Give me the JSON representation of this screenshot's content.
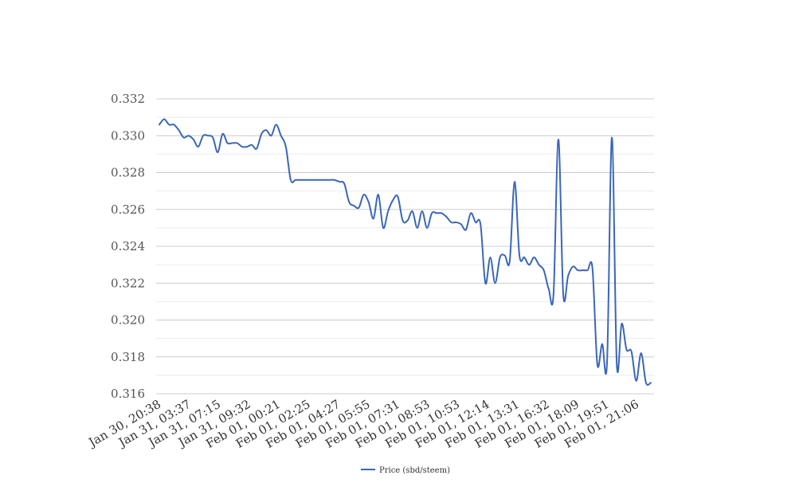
{
  "chart_data": {
    "type": "line",
    "title": "",
    "xlabel": "",
    "ylabel": "",
    "ylim": [
      0.316,
      0.332
    ],
    "yticks": [
      "0.316",
      "0.318",
      "0.320",
      "0.322",
      "0.324",
      "0.326",
      "0.328",
      "0.330",
      "0.332"
    ],
    "grid": true,
    "legend_position": "bottom",
    "color": "#3a66b8",
    "xtick_labels": [
      "Jan 30, 20:38",
      "Jan 31, 03:37",
      "Jan 31, 07:15",
      "Jan 31, 09:32",
      "Feb 01, 00:21",
      "Feb 01, 02:25",
      "Feb 01, 04:27",
      "Feb 01, 05:55",
      "Feb 01, 07:31",
      "Feb 01, 08:53",
      "Feb 01, 10:53",
      "Feb 01, 12:14",
      "Feb 01, 13:31",
      "Feb 01, 16:32",
      "Feb 01, 18:09",
      "Feb 01, 19:51",
      "Feb 01, 21:06"
    ],
    "series": [
      {
        "name": "Price (sbd/steem)",
        "values": [
          0.3306,
          0.3309,
          0.3306,
          0.3306,
          0.3303,
          0.3299,
          0.33,
          0.3298,
          0.3294,
          0.33,
          0.33,
          0.3299,
          0.3291,
          0.3301,
          0.3296,
          0.3296,
          0.3296,
          0.3294,
          0.3294,
          0.3295,
          0.3293,
          0.3301,
          0.3303,
          0.33,
          0.3306,
          0.33,
          0.3294,
          0.3276,
          0.3276,
          0.3276,
          0.3276,
          0.3276,
          0.3276,
          0.3276,
          0.3276,
          0.3276,
          0.3276,
          0.3275,
          0.3274,
          0.3264,
          0.3262,
          0.3261,
          0.3268,
          0.3264,
          0.3255,
          0.3268,
          0.325,
          0.3259,
          0.3265,
          0.3267,
          0.3254,
          0.3254,
          0.3259,
          0.325,
          0.3259,
          0.325,
          0.3258,
          0.3258,
          0.3258,
          0.3256,
          0.3253,
          0.3253,
          0.3252,
          0.3249,
          0.3258,
          0.3253,
          0.3252,
          0.322,
          0.3234,
          0.322,
          0.3234,
          0.3235,
          0.3232,
          0.3275,
          0.3235,
          0.3234,
          0.323,
          0.3234,
          0.323,
          0.3227,
          0.3217,
          0.3214,
          0.3298,
          0.3214,
          0.3224,
          0.3229,
          0.3227,
          0.3227,
          0.3227,
          0.3228,
          0.3176,
          0.3187,
          0.3177,
          0.3299,
          0.3176,
          0.3198,
          0.3184,
          0.3183,
          0.3167,
          0.3182,
          0.3166,
          0.3166
        ]
      }
    ]
  }
}
